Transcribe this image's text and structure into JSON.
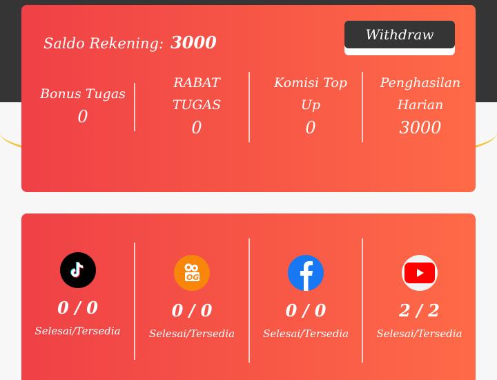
{
  "balance": {
    "label": "Saldo Rekening",
    "separator": ":",
    "value": "3000"
  },
  "withdraw_label": "Withdraw",
  "stats": [
    {
      "label": "Bonus Tugas",
      "value": "0"
    },
    {
      "label": "RABAT TUGAS",
      "value": "0"
    },
    {
      "label": "Komisi Top Up",
      "value": "0"
    },
    {
      "label": "Penghasilan Harian",
      "value": "3000"
    }
  ],
  "platforms": [
    {
      "icon": "tiktok-icon",
      "count": "0 / 0",
      "sub": "Selesai/Tersedia",
      "color": "#000000"
    },
    {
      "icon": "kuaishou-icon",
      "count": "0 / 0",
      "sub": "Selesai/Tersedia",
      "color": "#f7860b"
    },
    {
      "icon": "facebook-icon",
      "count": "0 / 0",
      "sub": "Selesai/Tersedia",
      "color": "#1877f2"
    },
    {
      "icon": "youtube-icon",
      "count": "2 / 2",
      "sub": "Selesai/Tersedia",
      "color": "#ff0000"
    }
  ]
}
